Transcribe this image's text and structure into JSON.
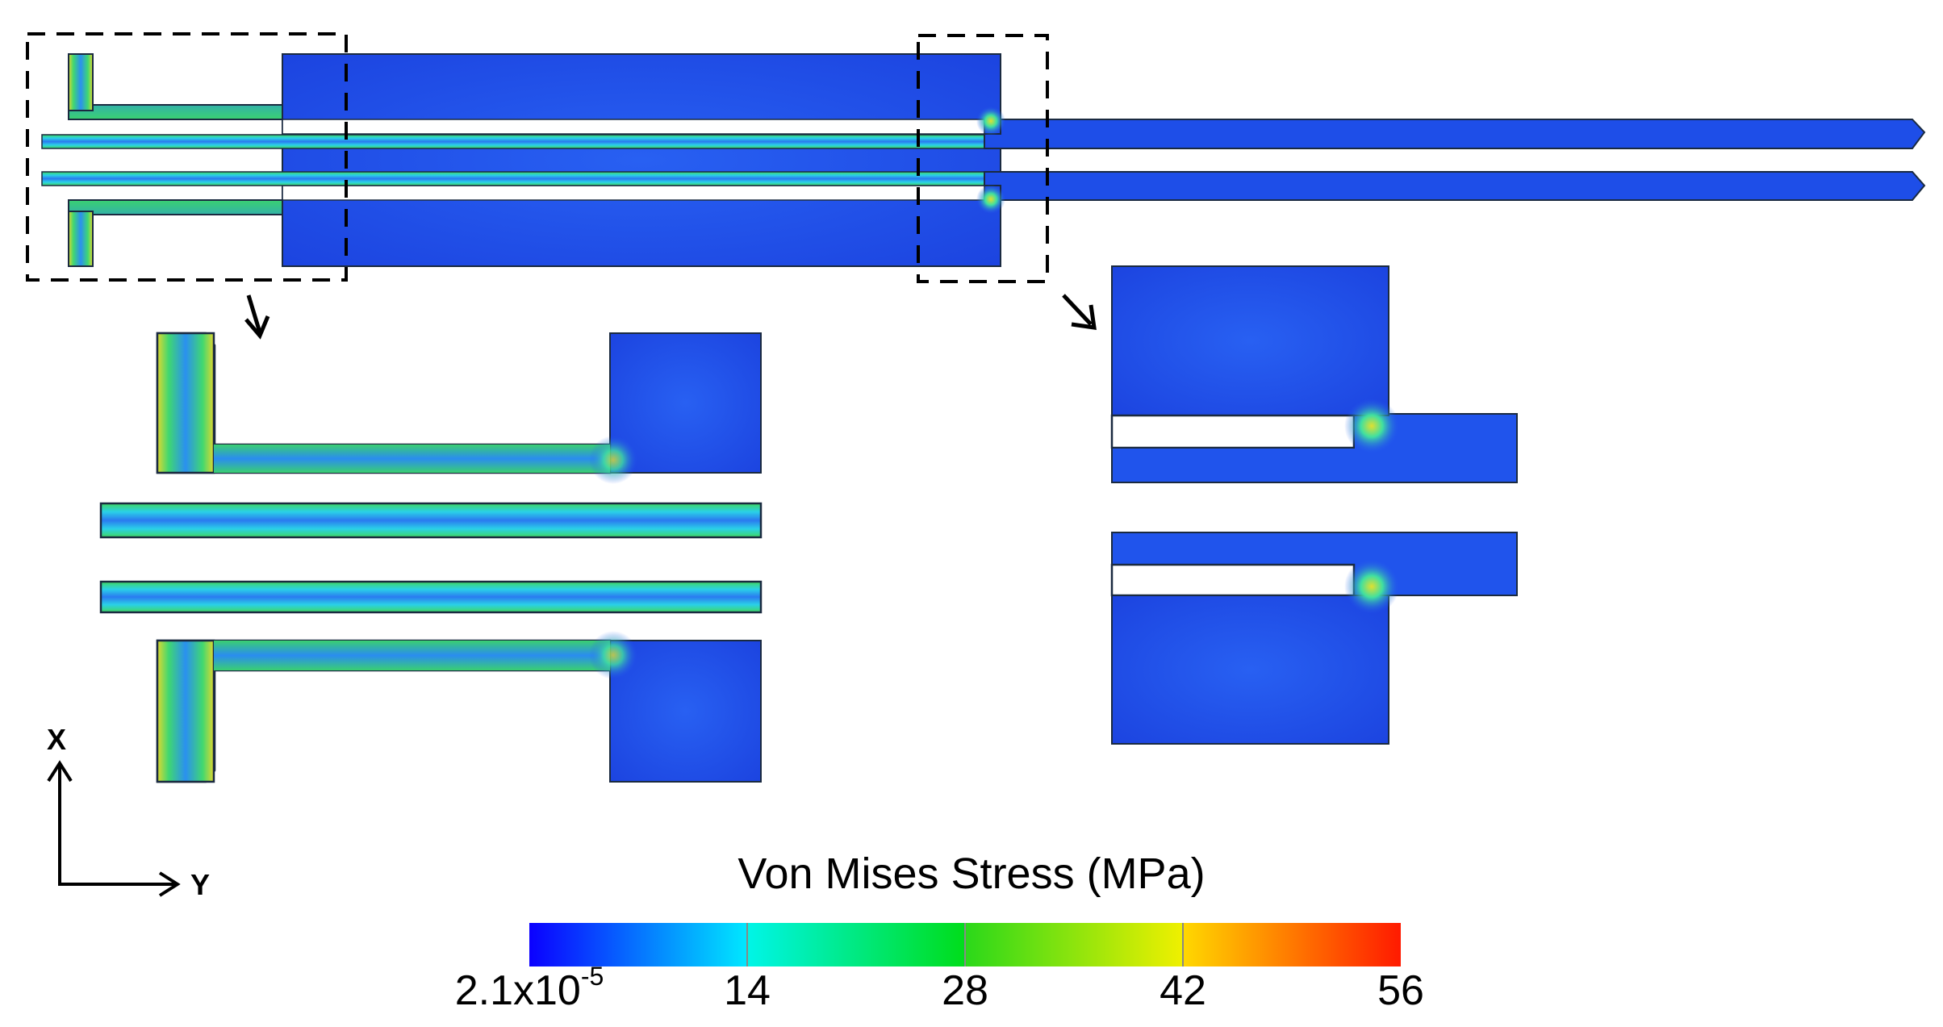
{
  "colorbar": {
    "title": "Von Mises Stress (MPa)",
    "min_label_base": "2.1x10",
    "min_label_exp": "-5",
    "ticks": [
      "14",
      "28",
      "42",
      "56"
    ],
    "min_value": 2.1e-05,
    "max_value": 56,
    "segments": [
      {
        "from": "#0b00ff",
        "to": "#00e8ff"
      },
      {
        "from": "#00f5e8",
        "to": "#00dd1a"
      },
      {
        "from": "#2ad81a",
        "to": "#f0f000"
      },
      {
        "from": "#ffd800",
        "to": "#ff1a00"
      }
    ]
  },
  "axes": {
    "vertical_label": "X",
    "horizontal_label": "Y"
  },
  "colors": {
    "base_blue": "#1e4ee8",
    "mid_blue": "#2458f0",
    "edge_cyan": "#2bd4e8",
    "hot_green": "#50e050",
    "hot_yellow": "#e0e030",
    "outline": "#1a2a40"
  }
}
